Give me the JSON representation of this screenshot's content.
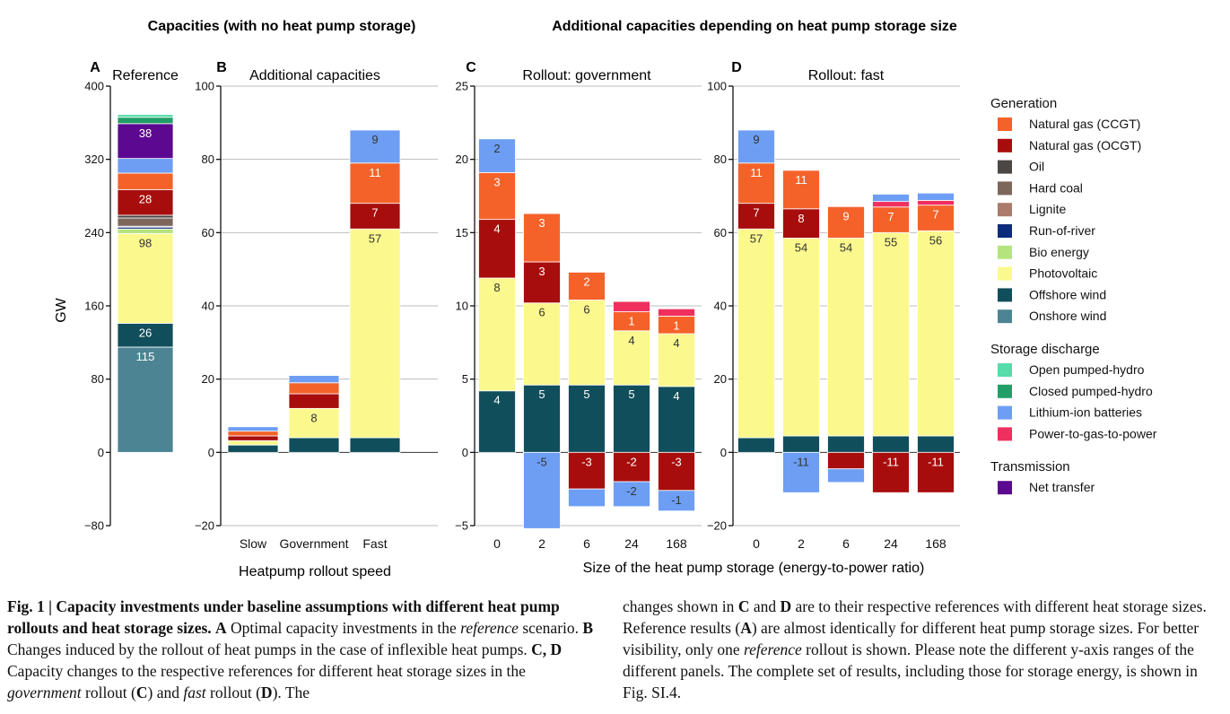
{
  "headers": {
    "left": "Capacities (with no heat pump storage)",
    "right": "Additional capacities depending on heat pump storage size"
  },
  "colors": {
    "Natural gas (CCGT)": "#f4622a",
    "Natural gas (OCGT)": "#a80d0d",
    "Oil": "#4b4745",
    "Hard coal": "#7d665c",
    "Lignite": "#ab7a6a",
    "Run-of-river": "#0b2c7d",
    "Bio energy": "#b5e47e",
    "Photovoltaic": "#fbf88e",
    "Offshore wind": "#114e5c",
    "Onshore wind": "#4d8494",
    "Open pumped-hydro": "#56dbaa",
    "Closed pumped-hydro": "#229f68",
    "Lithium-ion batteries": "#6d9ef4",
    "Power-to-gas-to-power": "#ef305e",
    "Net transfer": "#5c0891"
  },
  "legend": {
    "groups": [
      {
        "title": "Generation",
        "items": [
          "Natural gas (CCGT)",
          "Natural gas (OCGT)",
          "Oil",
          "Hard coal",
          "Lignite",
          "Run-of-river",
          "Bio energy",
          "Photovoltaic",
          "Offshore wind",
          "Onshore wind"
        ]
      },
      {
        "title": "Storage discharge",
        "items": [
          "Open pumped-hydro",
          "Closed pumped-hydro",
          "Lithium-ion batteries",
          "Power-to-gas-to-power"
        ]
      },
      {
        "title": "Transmission",
        "items": [
          "Net transfer"
        ]
      }
    ]
  },
  "chart_data": [
    {
      "panel": "A",
      "title": "Reference",
      "type": "bar",
      "stacked": true,
      "ylabel": "GW",
      "ylim": [
        -80,
        400
      ],
      "yticks": [
        -80,
        0,
        80,
        160,
        240,
        320,
        400
      ],
      "grid": false,
      "categories": [
        ""
      ],
      "bars": [
        [
          {
            "s": "Onshore wind",
            "v": 115,
            "label": "115"
          },
          {
            "s": "Offshore wind",
            "v": 26,
            "label": "26"
          },
          {
            "s": "Photovoltaic",
            "v": 98,
            "label": "98"
          },
          {
            "s": "Bio energy",
            "v": 5
          },
          {
            "s": "Run-of-river",
            "v": 2
          },
          {
            "s": "Lignite",
            "v": 1
          },
          {
            "s": "Hard coal",
            "v": 9
          },
          {
            "s": "Oil",
            "v": 3
          },
          {
            "s": "Natural gas (OCGT)",
            "v": 28,
            "label": "28"
          },
          {
            "s": "Natural gas (CCGT)",
            "v": 18
          },
          {
            "s": "Lithium-ion batteries",
            "v": 16
          },
          {
            "s": "Net transfer",
            "v": 38,
            "label": "38"
          },
          {
            "s": "Closed pumped-hydro",
            "v": 7
          },
          {
            "s": "Open pumped-hydro",
            "v": 3
          }
        ]
      ]
    },
    {
      "panel": "B",
      "title": "Additional capacities",
      "type": "bar",
      "stacked": true,
      "ylim": [
        -20,
        100
      ],
      "yticks": [
        -20,
        0,
        20,
        40,
        60,
        80,
        100
      ],
      "grid": true,
      "xlabel": "Heatpump rollout speed",
      "categories": [
        "Slow",
        "Government",
        "Fast"
      ],
      "bars": [
        [
          {
            "s": "Offshore wind",
            "v": 2
          },
          {
            "s": "Photovoltaic",
            "v": 1.2
          },
          {
            "s": "Natural gas (OCGT)",
            "v": 1.3
          },
          {
            "s": "Natural gas (CCGT)",
            "v": 1.3
          },
          {
            "s": "Lithium-ion batteries",
            "v": 1.2
          }
        ],
        [
          {
            "s": "Offshore wind",
            "v": 4
          },
          {
            "s": "Photovoltaic",
            "v": 8,
            "label": "8"
          },
          {
            "s": "Natural gas (OCGT)",
            "v": 4
          },
          {
            "s": "Natural gas (CCGT)",
            "v": 3
          },
          {
            "s": "Lithium-ion batteries",
            "v": 2
          }
        ],
        [
          {
            "s": "Offshore wind",
            "v": 4
          },
          {
            "s": "Photovoltaic",
            "v": 57,
            "label": "57"
          },
          {
            "s": "Natural gas (OCGT)",
            "v": 7,
            "label": "7"
          },
          {
            "s": "Natural gas (CCGT)",
            "v": 11,
            "label": "11"
          },
          {
            "s": "Lithium-ion batteries",
            "v": 9,
            "label": "9"
          }
        ]
      ]
    },
    {
      "panel": "C",
      "title": "Rollout: government",
      "type": "bar",
      "stacked": true,
      "ylim": [
        -5,
        25
      ],
      "yticks": [
        -5,
        0,
        5,
        10,
        15,
        20,
        25
      ],
      "grid": true,
      "categories": [
        "0",
        "2",
        "6",
        "24",
        "168"
      ],
      "bars": [
        [
          {
            "s": "Offshore wind",
            "v": 4.2,
            "label": "4"
          },
          {
            "s": "Photovoltaic",
            "v": 7.7,
            "label": "8"
          },
          {
            "s": "Natural gas (OCGT)",
            "v": 4.0,
            "label": "4"
          },
          {
            "s": "Natural gas (CCGT)",
            "v": 3.2,
            "label": "3"
          },
          {
            "s": "Lithium-ion batteries",
            "v": 2.3,
            "label": "2"
          }
        ],
        [
          {
            "s": "Offshore wind",
            "v": 4.6,
            "label": "5"
          },
          {
            "s": "Photovoltaic",
            "v": 5.6,
            "label": "6"
          },
          {
            "s": "Natural gas (OCGT)",
            "v": 2.8,
            "label": "3"
          },
          {
            "s": "Natural gas (CCGT)",
            "v": 3.3,
            "label": "3"
          },
          {
            "s": "Lithium-ion batteries",
            "v": -5.2,
            "label": "-5"
          }
        ],
        [
          {
            "s": "Offshore wind",
            "v": 4.6,
            "label": "5"
          },
          {
            "s": "Photovoltaic",
            "v": 5.8,
            "label": "6"
          },
          {
            "s": "Natural gas (CCGT)",
            "v": 1.9,
            "label": "2"
          },
          {
            "s": "Natural gas (OCGT)",
            "v": -2.5,
            "label": "-3"
          },
          {
            "s": "Lithium-ion batteries",
            "v": -1.2
          }
        ],
        [
          {
            "s": "Offshore wind",
            "v": 4.6,
            "label": "5"
          },
          {
            "s": "Photovoltaic",
            "v": 3.7,
            "label": "4"
          },
          {
            "s": "Natural gas (CCGT)",
            "v": 1.3,
            "label": "1"
          },
          {
            "s": "Power-to-gas-to-power",
            "v": 0.7
          },
          {
            "s": "Natural gas (OCGT)",
            "v": -2.0,
            "label": "-2"
          },
          {
            "s": "Lithium-ion batteries",
            "v": -1.7,
            "label": "-2"
          }
        ],
        [
          {
            "s": "Offshore wind",
            "v": 4.5,
            "label": "4"
          },
          {
            "s": "Photovoltaic",
            "v": 3.6,
            "label": "4"
          },
          {
            "s": "Natural gas (CCGT)",
            "v": 1.2,
            "label": "1"
          },
          {
            "s": "Power-to-gas-to-power",
            "v": 0.5
          },
          {
            "s": "Natural gas (OCGT)",
            "v": -2.6,
            "label": "-3"
          },
          {
            "s": "Lithium-ion batteries",
            "v": -1.4,
            "label": "-1"
          }
        ]
      ]
    },
    {
      "panel": "D",
      "title": "Rollout: fast",
      "type": "bar",
      "stacked": true,
      "ylim": [
        -20,
        100
      ],
      "yticks": [
        -20,
        0,
        20,
        40,
        60,
        80,
        100
      ],
      "grid": true,
      "categories": [
        "0",
        "2",
        "6",
        "24",
        "168"
      ],
      "bars": [
        [
          {
            "s": "Offshore wind",
            "v": 4
          },
          {
            "s": "Photovoltaic",
            "v": 57,
            "label": "57"
          },
          {
            "s": "Natural gas (OCGT)",
            "v": 7,
            "label": "7"
          },
          {
            "s": "Natural gas (CCGT)",
            "v": 11,
            "label": "11"
          },
          {
            "s": "Lithium-ion batteries",
            "v": 9,
            "label": "9"
          }
        ],
        [
          {
            "s": "Offshore wind",
            "v": 4.5
          },
          {
            "s": "Photovoltaic",
            "v": 54,
            "label": "54"
          },
          {
            "s": "Natural gas (OCGT)",
            "v": 8,
            "label": "8"
          },
          {
            "s": "Natural gas (CCGT)",
            "v": 10.5,
            "label": "11"
          },
          {
            "s": "Lithium-ion batteries",
            "v": -11,
            "label": "-11"
          }
        ],
        [
          {
            "s": "Offshore wind",
            "v": 4.5
          },
          {
            "s": "Photovoltaic",
            "v": 54,
            "label": "54"
          },
          {
            "s": "Natural gas (CCGT)",
            "v": 8.6,
            "label": "9"
          },
          {
            "s": "Natural gas (OCGT)",
            "v": -4.5
          },
          {
            "s": "Lithium-ion batteries",
            "v": -3.7
          }
        ],
        [
          {
            "s": "Offshore wind",
            "v": 4.5
          },
          {
            "s": "Photovoltaic",
            "v": 55.5,
            "label": "55"
          },
          {
            "s": "Natural gas (CCGT)",
            "v": 7,
            "label": "7"
          },
          {
            "s": "Power-to-gas-to-power",
            "v": 1.5
          },
          {
            "s": "Lithium-ion batteries",
            "v": 2
          },
          {
            "s": "Natural gas (OCGT)",
            "v": -11,
            "label": "-11"
          }
        ],
        [
          {
            "s": "Offshore wind",
            "v": 4.5
          },
          {
            "s": "Photovoltaic",
            "v": 56,
            "label": "56"
          },
          {
            "s": "Natural gas (CCGT)",
            "v": 7,
            "label": "7"
          },
          {
            "s": "Power-to-gas-to-power",
            "v": 1.3
          },
          {
            "s": "Lithium-ion batteries",
            "v": 2
          },
          {
            "s": "Natural gas (OCGT)",
            "v": -11,
            "label": "-11"
          }
        ]
      ]
    }
  ],
  "shared_xlabel_cd": "Size of the heat pump storage (energy-to-power ratio)",
  "caption": {
    "left": {
      "fig_label": "Fig. 1 | Capacity investments under baseline assumptions with different heat pump rollouts and heat storage sizes.",
      "a_label": "A",
      "a_text": " Optimal capacity investments in the ",
      "a_ital": "reference",
      "a_tail": " scenario. ",
      "b_label": "B",
      "b_text": " Changes induced by the rollout of heat pumps in the case of inflexible heat pumps. ",
      "cd_label": "C, D",
      "cd_text": " Capacity changes to the respective references for different heat storage sizes in the ",
      "gov": "government",
      "rollout1": " rollout (",
      "c_label": "C",
      "and_text": ") and ",
      "fast": "fast",
      "rollout2": " rollout (",
      "d_label": "D",
      "end_text": "). The"
    },
    "right": {
      "t1": "changes shown in ",
      "c_label": "C",
      "t2": " and ",
      "d_label": "D",
      "t3": " are to their respective references with different heat storage sizes. Reference results (",
      "a_label": "A",
      "t4": ") are almost identically for different heat pump storage sizes. For better visibility, only one ",
      "ref": "reference",
      "t5": " rollout is shown. Please note the different y-axis ranges of the different panels. The complete set of results, including those for storage energy, is shown in Fig. SI.4."
    }
  }
}
